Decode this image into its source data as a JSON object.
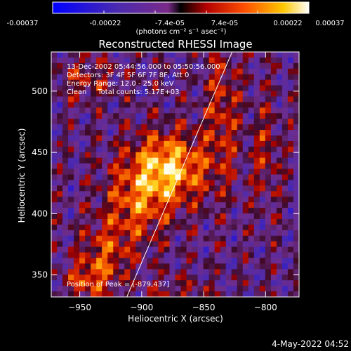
{
  "colorbar": {
    "colorscale": "hot-bipolar (blue-purple-red-orange-yellow-white)",
    "tick_labels": [
      "-0.00037",
      "-0.00022",
      "-7.4e-05",
      "7.4e-05",
      "0.00022",
      "0.00037"
    ],
    "unit_label": "(photons cm⁻² s⁻¹ asec⁻²)"
  },
  "chart_data": {
    "type": "heatmap",
    "title": "Reconstructed RHESSI Image",
    "xlabel": "Heliocentric X (arcsec)",
    "ylabel": "Heliocentric Y (arcsec)",
    "xlim": [
      -973,
      -773
    ],
    "ylim": [
      332,
      532
    ],
    "x_ticks": [
      -950,
      -900,
      -850,
      -800
    ],
    "y_ticks": [
      350,
      400,
      450,
      500
    ],
    "x_tick_labels": [
      "−950",
      "−900",
      "−850",
      "−800"
    ],
    "y_tick_labels": [
      "350",
      "400",
      "450",
      "500"
    ],
    "zlim": [
      -0.00037,
      0.00037
    ],
    "peak_position": [
      -879,
      437
    ],
    "total_counts": 5170,
    "energy_range_keV": [
      12.0,
      25.0
    ],
    "annotations": [
      "13-Dec-2002 05:44:56.000 to 05:50:56.000",
      "Detectors: 3F 4F 5F 6F 7F 8F, Att 0",
      "Energy Range: 12.0 - 25.0 keV",
      "Clean     Total counts: 5.17E+03",
      "Position of Peak = [-879,437]"
    ],
    "limb_line": [
      [
        -912,
        332
      ],
      [
        -827,
        532
      ]
    ]
  },
  "footer": {
    "timestamp": "4-May-2022 04:52"
  }
}
